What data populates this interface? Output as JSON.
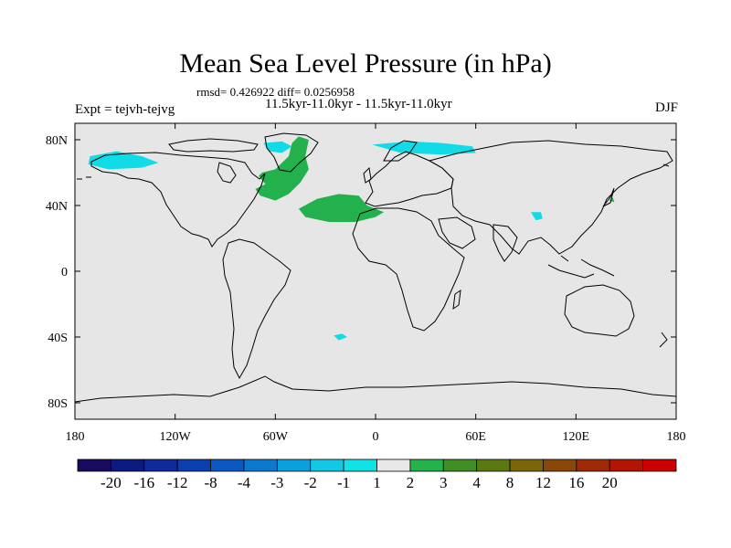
{
  "title": "Mean Sea Level Pressure (in hPa)",
  "stats": "rmsd= 0.426922 diff= 0.0256958",
  "period": "11.5kyr-11.0kyr - 11.5kyr-11.0kyr",
  "experiment": "Expt = tejvh-tejvg",
  "season": "DJF",
  "colors": {
    "background_field": "#e6e6e6",
    "positive": "#22b14c",
    "negative": "#11dbe6",
    "coast": "#000000"
  },
  "chart_data": {
    "type": "heatmap",
    "x_ticks": [
      {
        "lon": -180,
        "label": "180"
      },
      {
        "lon": -120,
        "label": "120W"
      },
      {
        "lon": -60,
        "label": "60W"
      },
      {
        "lon": 0,
        "label": "0"
      },
      {
        "lon": 60,
        "label": "60E"
      },
      {
        "lon": 120,
        "label": "120E"
      },
      {
        "lon": 180,
        "label": "180"
      }
    ],
    "y_ticks": [
      {
        "lat": 80,
        "label": "80N"
      },
      {
        "lat": 40,
        "label": "40N"
      },
      {
        "lat": 0,
        "label": "0"
      },
      {
        "lat": -40,
        "label": "40S"
      },
      {
        "lat": -80,
        "label": "80S"
      }
    ],
    "lon_range": [
      -180,
      180
    ],
    "lat_range": [
      -90,
      90
    ],
    "colorbar": {
      "levels": [
        "-20",
        "-16",
        "-12",
        "-8",
        "-4",
        "-3",
        "-2",
        "-1",
        "1",
        "2",
        "3",
        "4",
        "8",
        "12",
        "16",
        "20"
      ],
      "colors": [
        "#1a0a5e",
        "#0c1a80",
        "#0f2a9a",
        "#0b3fb0",
        "#0a58c4",
        "#0a79d0",
        "#0aa0dc",
        "#12c8e4",
        "#11e2e6",
        "#e8e8e8",
        "#22b34a",
        "#3f8f26",
        "#5a7a10",
        "#7a6608",
        "#8a4808",
        "#a02a06",
        "#b41404",
        "#cc0000"
      ]
    },
    "anomaly_regions": [
      {
        "sign": "negative",
        "region": "Alaska / Bering",
        "value": -1.5,
        "outline": [
          [
            -171,
            70
          ],
          [
            -155,
            73
          ],
          [
            -140,
            70
          ],
          [
            -130,
            66
          ],
          [
            -140,
            63
          ],
          [
            -160,
            62
          ],
          [
            -172,
            65
          ]
        ]
      },
      {
        "sign": "negative",
        "region": "Baffin Bay",
        "value": -1.5,
        "outline": [
          [
            -67,
            78
          ],
          [
            -56,
            79
          ],
          [
            -50,
            76
          ],
          [
            -56,
            72
          ],
          [
            -64,
            73
          ]
        ]
      },
      {
        "sign": "negative",
        "region": "Barents / Kara",
        "value": -1.5,
        "outline": [
          [
            -2,
            77
          ],
          [
            20,
            79
          ],
          [
            40,
            78
          ],
          [
            58,
            76
          ],
          [
            60,
            72
          ],
          [
            40,
            71
          ],
          [
            15,
            72
          ]
        ]
      },
      {
        "sign": "negative",
        "region": "South Atlantic",
        "value": -1.5,
        "outline": [
          [
            -25,
            -39
          ],
          [
            -20,
            -38
          ],
          [
            -17,
            -40
          ],
          [
            -22,
            -42
          ]
        ]
      },
      {
        "sign": "negative",
        "region": "Central Asia",
        "value": -1.5,
        "outline": [
          [
            93,
            36
          ],
          [
            99,
            36
          ],
          [
            100,
            32
          ],
          [
            96,
            31
          ]
        ]
      },
      {
        "sign": "positive",
        "region": "North Atlantic / Greenland",
        "value": 1.5,
        "outline": [
          [
            -68,
            60
          ],
          [
            -60,
            62
          ],
          [
            -52,
            70
          ],
          [
            -50,
            78
          ],
          [
            -46,
            82
          ],
          [
            -40,
            80
          ],
          [
            -42,
            70
          ],
          [
            -40,
            62
          ],
          [
            -45,
            54
          ],
          [
            -52,
            47
          ],
          [
            -60,
            43
          ],
          [
            -69,
            46
          ],
          [
            -72,
            50
          ],
          [
            -66,
            53
          ],
          [
            -70,
            58
          ]
        ]
      },
      {
        "sign": "positive",
        "region": "Subtropical Atlantic / Iberia",
        "value": 1.5,
        "outline": [
          [
            -46,
            38
          ],
          [
            -35,
            44
          ],
          [
            -22,
            47
          ],
          [
            -10,
            46
          ],
          [
            -5,
            40
          ],
          [
            5,
            36
          ],
          [
            0,
            33
          ],
          [
            -12,
            30
          ],
          [
            -28,
            30
          ],
          [
            -42,
            33
          ]
        ]
      },
      {
        "sign": "positive",
        "region": "Japan",
        "value": 1.5,
        "outline": [
          [
            140,
            43
          ],
          [
            142,
            45
          ],
          [
            143,
            42
          ]
        ]
      }
    ]
  }
}
